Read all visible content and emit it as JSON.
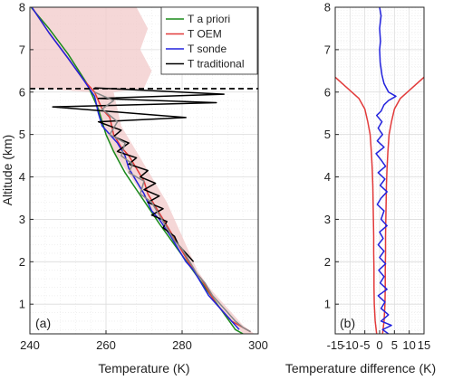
{
  "chart_data": [
    {
      "type": "line",
      "panel_label": "(a)",
      "xlabel": "Temperature (K)",
      "ylabel": "Altitude (km)",
      "xlim": [
        240,
        300
      ],
      "ylim": [
        0.3,
        8.0
      ],
      "x_ticks": [
        240,
        260,
        280,
        300
      ],
      "y_ticks": [
        1,
        2,
        3,
        4,
        5,
        6,
        7,
        8
      ],
      "grid": true,
      "legend_position": "top-right",
      "reference_line": {
        "y": 6.08,
        "style": "dashed",
        "color": "#000000"
      },
      "series": [
        {
          "name": "T a priori",
          "color": "#1a8a1a",
          "points": [
            [
              240.3,
              8.0
            ],
            [
              245,
              7.5
            ],
            [
              250,
              6.9
            ],
            [
              255,
              6.2
            ],
            [
              258,
              5.6
            ],
            [
              260,
              5.0
            ],
            [
              262,
              4.6
            ],
            [
              265,
              4.1
            ],
            [
              268,
              3.7
            ],
            [
              271,
              3.3
            ],
            [
              274,
              2.9
            ],
            [
              278,
              2.4
            ],
            [
              282,
              1.9
            ],
            [
              286,
              1.4
            ],
            [
              290,
              0.9
            ],
            [
              294,
              0.4
            ],
            [
              296,
              0.3
            ]
          ]
        },
        {
          "name": "T OEM",
          "color": "#e23a3a",
          "points": [
            [
              240.5,
              8.0
            ],
            [
              245,
              7.4
            ],
            [
              250,
              6.8
            ],
            [
              254,
              6.3
            ],
            [
              257,
              6.0
            ],
            [
              259,
              5.6
            ],
            [
              261,
              5.4
            ],
            [
              262,
              5.0
            ],
            [
              264,
              4.7
            ],
            [
              266,
              4.5
            ],
            [
              268,
              4.2
            ],
            [
              270,
              3.9
            ],
            [
              271,
              3.6
            ],
            [
              273,
              3.3
            ],
            [
              275,
              3.0
            ],
            [
              277,
              2.7
            ],
            [
              279,
              2.4
            ],
            [
              281,
              2.1
            ],
            [
              283,
              1.8
            ],
            [
              285,
              1.6
            ],
            [
              287,
              1.3
            ],
            [
              289,
              1.0
            ],
            [
              291,
              0.8
            ],
            [
              293,
              0.6
            ],
            [
              296,
              0.45
            ],
            [
              298,
              0.35
            ]
          ]
        },
        {
          "name": "T sonde",
          "color": "#2222dd",
          "points": [
            [
              240.5,
              8.0
            ],
            [
              245,
              7.4
            ],
            [
              250,
              6.8
            ],
            [
              254,
              6.3
            ],
            [
              257,
              5.9
            ],
            [
              258,
              5.5
            ],
            [
              259,
              5.2
            ],
            [
              261,
              5.0
            ],
            [
              263,
              4.8
            ],
            [
              265,
              4.5
            ],
            [
              266,
              4.2
            ],
            [
              268,
              3.9
            ],
            [
              270,
              3.6
            ],
            [
              272,
              3.2
            ],
            [
              274,
              3.0
            ],
            [
              277,
              2.6
            ],
            [
              279,
              2.3
            ],
            [
              281,
              2.0
            ],
            [
              283,
              1.8
            ],
            [
              285,
              1.5
            ],
            [
              287,
              1.2
            ],
            [
              289,
              1.0
            ],
            [
              291,
              0.8
            ],
            [
              293,
              0.6
            ],
            [
              295,
              0.4
            ]
          ]
        },
        {
          "name": "T traditional",
          "color": "#000000",
          "points": [
            [
              257,
              6.1
            ],
            [
              291,
              5.95
            ],
            [
              258,
              5.85
            ],
            [
              289,
              5.75
            ],
            [
              246,
              5.65
            ],
            [
              281,
              5.4
            ],
            [
              258,
              5.3
            ],
            [
              264,
              5.1
            ],
            [
              262,
              4.95
            ],
            [
              266,
              4.8
            ],
            [
              263,
              4.6
            ],
            [
              268,
              4.45
            ],
            [
              266,
              4.3
            ],
            [
              271,
              4.15
            ],
            [
              269,
              4.0
            ],
            [
              273,
              3.85
            ],
            [
              270,
              3.7
            ],
            [
              274,
              3.55
            ],
            [
              271,
              3.4
            ],
            [
              275,
              3.25
            ],
            [
              272,
              3.1
            ],
            [
              276,
              2.95
            ],
            [
              275,
              2.8
            ],
            [
              278,
              2.6
            ],
            [
              279,
              2.4
            ],
            [
              281,
              2.2
            ],
            [
              283,
              2.0
            ]
          ]
        },
        {
          "name": "",
          "color": "#888888",
          "points": [
            [
              257,
              6.0
            ],
            [
              262,
              5.8
            ],
            [
              259,
              5.6
            ],
            [
              263,
              5.3
            ],
            [
              261,
              5.0
            ],
            [
              265,
              4.8
            ],
            [
              264,
              4.5
            ],
            [
              267,
              4.3
            ],
            [
              266,
              4.1
            ],
            [
              270,
              3.9
            ],
            [
              269,
              3.6
            ],
            [
              272,
              3.4
            ],
            [
              274,
              3.1
            ],
            [
              276,
              2.8
            ],
            [
              278,
              2.5
            ],
            [
              280,
              2.3
            ],
            [
              282,
              2.0
            ],
            [
              284,
              1.7
            ],
            [
              286,
              1.5
            ],
            [
              288,
              1.2
            ],
            [
              290,
              1.0
            ],
            [
              292,
              0.8
            ],
            [
              294,
              0.6
            ],
            [
              296,
              0.45
            ],
            [
              298,
              0.35
            ]
          ]
        }
      ],
      "uncertainty_band": {
        "color": "#f2c9c9",
        "left": [
          [
            240.2,
            8.0
          ],
          [
            240.0,
            6.1
          ],
          [
            256,
            6.0
          ],
          [
            258,
            5.5
          ],
          [
            260,
            5.0
          ],
          [
            262,
            4.6
          ],
          [
            265,
            4.2
          ],
          [
            268,
            3.8
          ],
          [
            270,
            3.5
          ],
          [
            273,
            3.1
          ],
          [
            276,
            2.7
          ],
          [
            279,
            2.3
          ],
          [
            282,
            1.9
          ],
          [
            285,
            1.5
          ],
          [
            288,
            1.1
          ],
          [
            291,
            0.8
          ],
          [
            294,
            0.5
          ],
          [
            296,
            0.3
          ]
        ],
        "right": [
          [
            268,
            8.0
          ],
          [
            271,
            7.5
          ],
          [
            269,
            7.0
          ],
          [
            272,
            6.5
          ],
          [
            270,
            6.1
          ],
          [
            262,
            6.0
          ],
          [
            263,
            5.6
          ],
          [
            264,
            5.2
          ],
          [
            266,
            4.9
          ],
          [
            268,
            4.6
          ],
          [
            270,
            4.3
          ],
          [
            272,
            4.0
          ],
          [
            274,
            3.7
          ],
          [
            276,
            3.4
          ],
          [
            278,
            3.0
          ],
          [
            280,
            2.6
          ],
          [
            282,
            2.2
          ],
          [
            284,
            1.8
          ],
          [
            287,
            1.4
          ],
          [
            290,
            1.1
          ],
          [
            293,
            0.8
          ],
          [
            296,
            0.5
          ],
          [
            299,
            0.3
          ]
        ]
      }
    },
    {
      "type": "line",
      "panel_label": "(b)",
      "xlabel": "Temperature difference (K)",
      "ylabel": "",
      "xlim": [
        -15,
        15
      ],
      "ylim": [
        0.3,
        8.0
      ],
      "x_ticks": [
        -15,
        -10,
        -5,
        0,
        5,
        10,
        15
      ],
      "y_ticks": [
        1,
        2,
        3,
        4,
        5,
        6,
        7,
        8
      ],
      "grid": true,
      "series": [
        {
          "name": "",
          "color": "#e23a3a",
          "points": [
            [
              -15,
              6.35
            ],
            [
              -11,
              6.1
            ],
            [
              -7,
              5.85
            ],
            [
              -5,
              5.6
            ],
            [
              -4,
              5.3
            ],
            [
              -3.2,
              5.0
            ],
            [
              -2.8,
              4.6
            ],
            [
              -2.5,
              4.2
            ],
            [
              -2.3,
              3.8
            ],
            [
              -2.2,
              3.4
            ],
            [
              -2.1,
              3.0
            ],
            [
              -2.0,
              2.6
            ],
            [
              -2.0,
              2.2
            ],
            [
              -1.9,
              1.8
            ],
            [
              -1.9,
              1.4
            ],
            [
              -1.8,
              1.0
            ],
            [
              -1.5,
              0.6
            ],
            [
              -1.0,
              0.3
            ]
          ]
        },
        {
          "name": "",
          "color": "#e23a3a",
          "points": [
            [
              15,
              6.35
            ],
            [
              11,
              6.1
            ],
            [
              7,
              5.85
            ],
            [
              5,
              5.6
            ],
            [
              4,
              5.3
            ],
            [
              3.2,
              5.0
            ],
            [
              2.8,
              4.6
            ],
            [
              2.5,
              4.2
            ],
            [
              2.3,
              3.8
            ],
            [
              2.2,
              3.4
            ],
            [
              2.1,
              3.0
            ],
            [
              2.0,
              2.6
            ],
            [
              2.0,
              2.2
            ],
            [
              1.9,
              1.8
            ],
            [
              1.9,
              1.4
            ],
            [
              1.8,
              1.0
            ],
            [
              1.5,
              0.6
            ],
            [
              1.0,
              0.3
            ]
          ]
        },
        {
          "name": "",
          "color": "#2222dd",
          "points": [
            [
              0,
              8.0
            ],
            [
              0.5,
              7.8
            ],
            [
              0,
              7.5
            ],
            [
              0.3,
              7.2
            ],
            [
              0,
              7.0
            ],
            [
              0.2,
              6.7
            ],
            [
              0.8,
              6.4
            ],
            [
              1.5,
              6.2
            ],
            [
              3.0,
              6.0
            ],
            [
              5.5,
              5.9
            ],
            [
              3.0,
              5.8
            ],
            [
              1.5,
              5.7
            ],
            [
              0.5,
              5.55
            ],
            [
              -1.0,
              5.45
            ],
            [
              0.8,
              5.3
            ],
            [
              -0.5,
              5.15
            ],
            [
              1.0,
              5.0
            ],
            [
              -0.8,
              4.85
            ],
            [
              1.5,
              4.7
            ],
            [
              -1.2,
              4.55
            ],
            [
              0.5,
              4.4
            ],
            [
              2.0,
              4.25
            ],
            [
              -0.5,
              4.1
            ],
            [
              1.8,
              3.95
            ],
            [
              0.2,
              3.8
            ],
            [
              2.5,
              3.65
            ],
            [
              0.5,
              3.5
            ],
            [
              -0.8,
              3.35
            ],
            [
              1.5,
              3.2
            ],
            [
              0.5,
              3.0
            ],
            [
              2.5,
              2.85
            ],
            [
              0,
              2.7
            ],
            [
              1.2,
              2.55
            ],
            [
              -0.5,
              2.4
            ],
            [
              1.5,
              2.25
            ],
            [
              0,
              2.1
            ],
            [
              2.0,
              1.95
            ],
            [
              -0.3,
              1.8
            ],
            [
              1.5,
              1.65
            ],
            [
              0.2,
              1.5
            ],
            [
              2.5,
              1.35
            ],
            [
              -0.5,
              1.2
            ],
            [
              1.8,
              1.05
            ],
            [
              0.5,
              0.9
            ],
            [
              3.0,
              0.75
            ],
            [
              0.5,
              0.6
            ],
            [
              4.0,
              0.5
            ],
            [
              1.0,
              0.4
            ],
            [
              3.0,
              0.3
            ]
          ]
        }
      ]
    }
  ]
}
